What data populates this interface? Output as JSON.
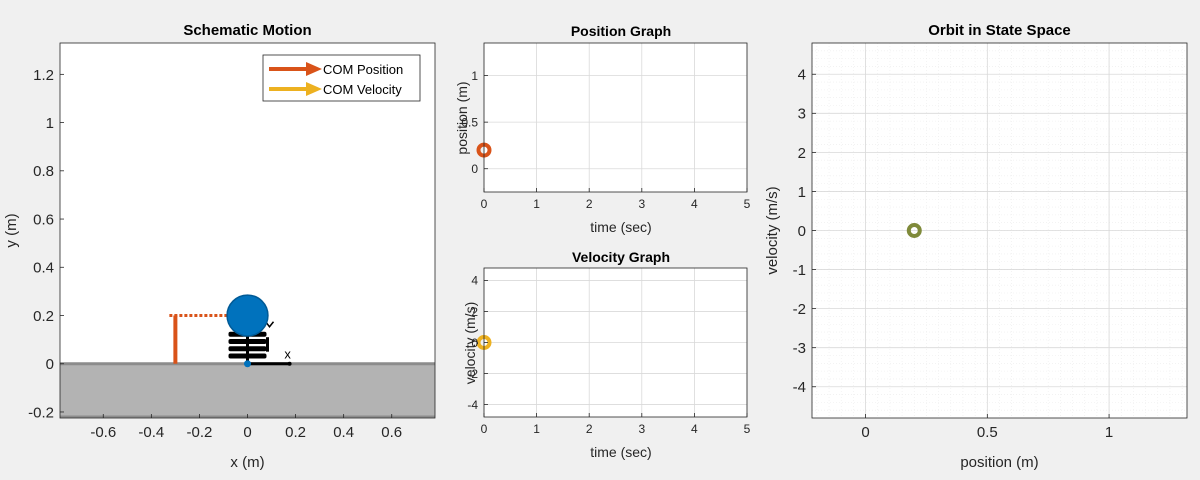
{
  "colors": {
    "figure_bg": "#f0f0f0",
    "axes_bg": "#ffffff",
    "ground": "#b3b3b3",
    "ground_edge": "#8c8c8c",
    "position": "#d95319",
    "velocity": "#edb120",
    "mass": "#0072bd",
    "state": "#77ac30",
    "grid": "#d9d9d9",
    "axis": "#262626"
  },
  "chart_data": [
    {
      "id": "schematic",
      "type": "schematic",
      "title": "Schematic Motion",
      "xlabel": "x (m)",
      "ylabel": "y (m)",
      "xlim": [
        -0.78,
        0.78
      ],
      "ylim": [
        -0.225,
        1.33
      ],
      "xticks": [
        -0.6,
        -0.4,
        -0.2,
        0,
        0.2,
        0.4,
        0.6
      ],
      "xtick_labels": [
        "-0.6",
        "-0.4",
        "-0.2",
        "0",
        "0.2",
        "0.4",
        "0.6"
      ],
      "yticks": [
        -0.2,
        0,
        0.2,
        0.4,
        0.6,
        0.8,
        1,
        1.2
      ],
      "ytick_labels": [
        "-0.2",
        "0",
        "0.2",
        "0.4",
        "0.6",
        "0.8",
        "1",
        "1.2"
      ],
      "legend": {
        "placement": "top-right",
        "entries": [
          {
            "label": "COM Position",
            "color": "position"
          },
          {
            "label": "COM Velocity",
            "color": "velocity"
          }
        ]
      },
      "ground_top": 0,
      "mass": {
        "x": 0,
        "y": 0.2,
        "radius": 0.085
      },
      "com_position": 0.2,
      "com_velocity": 0,
      "position_indicator_x": -0.3,
      "axis_marker": {
        "label": "x",
        "x_from": 0,
        "x_to": 0.175,
        "y": 0
      }
    },
    {
      "id": "position",
      "type": "line",
      "title": "Position Graph",
      "xlabel": "time (sec)",
      "ylabel": "position (m)",
      "xlim": [
        0,
        5
      ],
      "ylim": [
        -0.25,
        1.35
      ],
      "xticks": [
        0,
        1,
        2,
        3,
        4,
        5
      ],
      "xtick_labels": [
        "0",
        "1",
        "2",
        "3",
        "4",
        "5"
      ],
      "yticks": [
        0,
        0.5,
        1
      ],
      "ytick_labels": [
        "0",
        "0.5",
        "1"
      ],
      "series": [
        {
          "color": "position",
          "points": [
            [
              0,
              0.2
            ]
          ]
        }
      ]
    },
    {
      "id": "velocity",
      "type": "line",
      "title": "Velocity Graph",
      "xlabel": "time (sec)",
      "ylabel": "velocity (m/s)",
      "xlim": [
        0,
        5
      ],
      "ylim": [
        -4.8,
        4.8
      ],
      "xticks": [
        0,
        1,
        2,
        3,
        4,
        5
      ],
      "xtick_labels": [
        "0",
        "1",
        "2",
        "3",
        "4",
        "5"
      ],
      "yticks": [
        -4,
        -2,
        0,
        2,
        4
      ],
      "ytick_labels": [
        "-4",
        "-2",
        "0",
        "2",
        "4"
      ],
      "series": [
        {
          "color": "velocity",
          "points": [
            [
              0,
              0
            ]
          ]
        }
      ]
    },
    {
      "id": "orbit",
      "type": "scatter",
      "title": "Orbit in State Space",
      "xlabel": "position (m)",
      "ylabel": "velocity (m/s)",
      "xlim": [
        -0.22,
        1.32
      ],
      "ylim": [
        -4.8,
        4.8
      ],
      "xticks": [
        0,
        0.5,
        1
      ],
      "xtick_labels": [
        "0",
        "0.5",
        "1"
      ],
      "yticks": [
        -4,
        -3,
        -2,
        -1,
        0,
        1,
        2,
        3,
        4
      ],
      "ytick_labels": [
        "-4",
        "-3",
        "-2",
        "-1",
        "0",
        "1",
        "2",
        "3",
        "4"
      ],
      "minor_grid": true,
      "series": [
        {
          "color": "state",
          "points": [
            [
              0.2,
              0
            ]
          ]
        }
      ]
    }
  ]
}
